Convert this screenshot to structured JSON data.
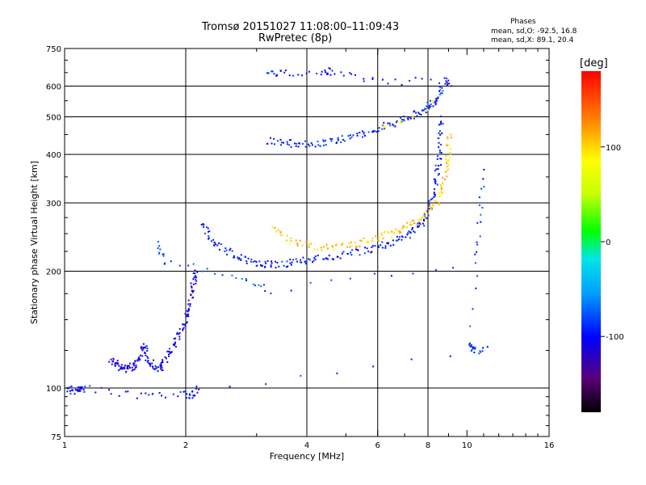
{
  "header": {
    "title_line1": "Tromsø 20151027 11:08:00–11:09:43",
    "title_line2": "RwPretec (8p)",
    "phases_label": "Phases",
    "phases_o": "mean, sd,O: -92.5, 16.8",
    "phases_x": "mean, sd,X:  89.1, 20.4"
  },
  "colorbar": {
    "unit_label": "[deg]",
    "ticks": [
      100,
      0,
      -100
    ],
    "range": [
      -180,
      180
    ],
    "colors_hex": [
      "#000000",
      "#5a007a",
      "#0000ff",
      "#00a0ff",
      "#00e6e6",
      "#00ff00",
      "#c8ff00",
      "#ffff00",
      "#ff8000",
      "#ff0000"
    ]
  },
  "chart_data": {
    "type": "scatter",
    "title": "Tromsø 20151027 11:08:00–11:09:43",
    "subtitle": "RwPretec (8p)",
    "xlabel": "Frequency [MHz]",
    "ylabel": "Stationary phase Virtual Height [km]",
    "xscale": "log",
    "yscale": "log",
    "xlim": [
      1,
      16
    ],
    "ylim": [
      75,
      750
    ],
    "x_ticks": [
      1,
      2,
      4,
      6,
      8,
      10,
      16
    ],
    "y_ticks": [
      75,
      100,
      200,
      300,
      400,
      500,
      600,
      750
    ],
    "grid": true,
    "grid_x": [
      2,
      4,
      6,
      8
    ],
    "grid_y": [
      100,
      200,
      300,
      400,
      500,
      600
    ],
    "color_encodes": "phase [deg]",
    "series": [
      {
        "points": [
          [
            1.02,
            100
          ],
          [
            1.06,
            98
          ],
          [
            1.09,
            99
          ],
          [
            1.12,
            100
          ],
          [
            1.55,
            95
          ],
          [
            2.0,
            96
          ],
          [
            2.08,
            96
          ],
          [
            2.14,
            100
          ]
        ],
        "phase": -100
      },
      {
        "points": [
          [
            1.3,
            118
          ],
          [
            1.35,
            115
          ],
          [
            1.38,
            113
          ],
          [
            1.42,
            112
          ],
          [
            1.46,
            113
          ],
          [
            1.5,
            114
          ],
          [
            1.54,
            120
          ],
          [
            1.58,
            130
          ],
          [
            1.62,
            118
          ],
          [
            1.66,
            113
          ],
          [
            1.72,
            112
          ],
          [
            1.76,
            115
          ],
          [
            1.82,
            125
          ],
          [
            1.88,
            130
          ],
          [
            1.94,
            138
          ],
          [
            2.0,
            150
          ],
          [
            2.04,
            160
          ],
          [
            2.07,
            175
          ],
          [
            2.1,
            190
          ],
          [
            2.13,
            200
          ]
        ],
        "phase": -105
      },
      {
        "points": [
          [
            2.2,
            270
          ],
          [
            2.3,
            245
          ],
          [
            2.4,
            232
          ],
          [
            2.6,
            222
          ],
          [
            2.8,
            215
          ],
          [
            3.0,
            210
          ],
          [
            3.2,
            208
          ],
          [
            3.5,
            209
          ],
          [
            3.8,
            212
          ],
          [
            4.1,
            215
          ],
          [
            4.5,
            217
          ],
          [
            5.0,
            220
          ],
          [
            5.5,
            225
          ],
          [
            6.0,
            230
          ],
          [
            6.5,
            237
          ],
          [
            7.0,
            245
          ],
          [
            7.4,
            255
          ],
          [
            7.8,
            270
          ],
          [
            8.1,
            290
          ],
          [
            8.3,
            320
          ],
          [
            8.45,
            360
          ],
          [
            8.55,
            400
          ],
          [
            8.6,
            450
          ],
          [
            8.62,
            500
          ]
        ],
        "phase": -95
      },
      {
        "points": [
          [
            3.3,
            260
          ],
          [
            3.6,
            240
          ],
          [
            4.0,
            234
          ],
          [
            4.5,
            230
          ],
          [
            5.0,
            232
          ],
          [
            5.5,
            237
          ],
          [
            6.0,
            243
          ],
          [
            6.5,
            250
          ],
          [
            7.0,
            258
          ],
          [
            7.5,
            268
          ],
          [
            8.0,
            282
          ],
          [
            8.4,
            300
          ],
          [
            8.7,
            330
          ],
          [
            8.9,
            370
          ],
          [
            9.0,
            410
          ],
          [
            9.05,
            450
          ]
        ],
        "phase": 105
      },
      {
        "points": [
          [
            3.2,
            435
          ],
          [
            3.5,
            428
          ],
          [
            3.8,
            426
          ],
          [
            4.2,
            428
          ],
          [
            4.6,
            432
          ],
          [
            5.0,
            440
          ],
          [
            5.5,
            452
          ],
          [
            6.0,
            465
          ],
          [
            6.5,
            480
          ],
          [
            7.0,
            495
          ],
          [
            7.5,
            510
          ],
          [
            7.9,
            525
          ],
          [
            8.2,
            540
          ],
          [
            8.5,
            560
          ],
          [
            8.7,
            600
          ]
        ],
        "phase": -90
      },
      {
        "points": [
          [
            6.2,
            470
          ],
          [
            6.8,
            485
          ],
          [
            7.4,
            500
          ],
          [
            7.9,
            520
          ],
          [
            8.3,
            545
          ]
        ],
        "phase": 95
      },
      {
        "points": [
          [
            3.2,
            650
          ],
          [
            3.5,
            645
          ],
          [
            4.4,
            655
          ],
          [
            4.6,
            655
          ],
          [
            5.9,
            615
          ],
          [
            8.8,
            620
          ],
          [
            9.1,
            610
          ]
        ],
        "phase": -100
      },
      {
        "points": [
          [
            1.7,
            235
          ],
          [
            1.78,
            212
          ],
          [
            2.7,
            195
          ],
          [
            3.25,
            178
          ],
          [
            10.5,
            210
          ],
          [
            11.0,
            365
          ],
          [
            10.2,
            130
          ],
          [
            10.3,
            125
          ],
          [
            11.1,
            125
          ],
          [
            1.35,
            92
          ]
        ],
        "phase": -85
      }
    ]
  }
}
